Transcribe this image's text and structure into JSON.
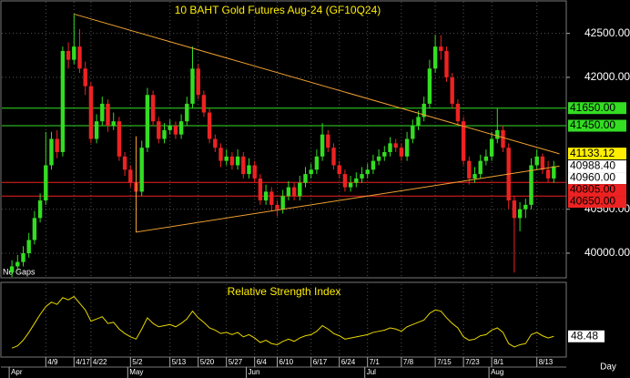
{
  "chart_data": {
    "type": "candlestick",
    "title": "10  BAHT  Gold Futures  Aug-24  (GF10Q24)",
    "note": "No Gaps",
    "x_axis_label": "Day",
    "up_color": "#33dd22",
    "down_color": "#ee2222",
    "ylim": [
      39720,
      42880
    ],
    "yticks": [
      {
        "value": 40000,
        "label": "40000.00"
      },
      {
        "value": 40500,
        "label": "40500.00"
      },
      {
        "value": 42000,
        "label": "42000.00"
      },
      {
        "value": 42500,
        "label": "42500.00"
      }
    ],
    "levels": [
      {
        "value": 41650,
        "label": "41650.00",
        "color": "#33dd22",
        "line": true
      },
      {
        "value": 41450,
        "label": "41450.00",
        "color": "#33dd22",
        "line": true
      },
      {
        "value": 41133.12,
        "label": "41133.12",
        "color": "#ffee00",
        "line": false
      },
      {
        "value": 40988.4,
        "label": "40988.40",
        "color": "#ffffff",
        "line": false
      },
      {
        "value": 40960,
        "label": "40960.00",
        "color": "#ffffff",
        "line": false
      },
      {
        "value": 40805,
        "label": "40805.00",
        "color": "#ee2222",
        "line": true
      },
      {
        "value": 40650,
        "label": "40650.00",
        "color": "#ee2222",
        "line": true
      }
    ],
    "trendline_color": "#f0a030",
    "trendlines": [
      [
        [
          11,
          42720
        ],
        [
          97,
          41130
        ]
      ],
      [
        [
          22,
          41330
        ],
        [
          22,
          40240
        ],
        [
          97,
          40990
        ]
      ]
    ],
    "date_ticks": [
      {
        "index": 6,
        "label": "4/9"
      },
      {
        "index": 11,
        "label": "4/17"
      },
      {
        "index": 14,
        "label": "4/22"
      },
      {
        "index": 21,
        "label": "5/2"
      },
      {
        "index": 28,
        "label": "5/13"
      },
      {
        "index": 33,
        "label": "5/20"
      },
      {
        "index": 38,
        "label": "5/27"
      },
      {
        "index": 43,
        "label": "6/4"
      },
      {
        "index": 47,
        "label": "6/10"
      },
      {
        "index": 53,
        "label": "6/17"
      },
      {
        "index": 58,
        "label": "6/24"
      },
      {
        "index": 63,
        "label": "7/1"
      },
      {
        "index": 69,
        "label": "7/8"
      },
      {
        "index": 75,
        "label": "7/15"
      },
      {
        "index": 80,
        "label": "7/23"
      },
      {
        "index": 85,
        "label": "8/1"
      },
      {
        "index": 93,
        "label": "8/13"
      }
    ],
    "month_ticks": [
      {
        "index": 0,
        "label": "Apr"
      },
      {
        "index": 21,
        "label": "May"
      },
      {
        "index": 42,
        "label": "Jun"
      },
      {
        "index": 63,
        "label": "Jul"
      },
      {
        "index": 85,
        "label": "Aug"
      }
    ],
    "candles": [
      [
        39780,
        39920,
        39730,
        39850
      ],
      [
        39850,
        39980,
        39800,
        39900
      ],
      [
        39900,
        40080,
        39850,
        40000
      ],
      [
        40000,
        40230,
        39950,
        40150
      ],
      [
        40150,
        40480,
        40100,
        40400
      ],
      [
        40400,
        40680,
        40350,
        40600
      ],
      [
        40600,
        41380,
        40550,
        41000
      ],
      [
        41000,
        41380,
        40950,
        41300
      ],
      [
        41300,
        41400,
        41080,
        41150
      ],
      [
        41150,
        42350,
        41100,
        42300
      ],
      [
        42300,
        42400,
        42100,
        42200
      ],
      [
        42200,
        42720,
        42150,
        42350
      ],
      [
        42350,
        42550,
        42050,
        42100
      ],
      [
        42100,
        42180,
        41800,
        41900
      ],
      [
        41900,
        41950,
        41250,
        41300
      ],
      [
        41300,
        41580,
        41250,
        41500
      ],
      [
        41500,
        41780,
        41450,
        41700
      ],
      [
        41700,
        41750,
        41380,
        41450
      ],
      [
        41450,
        41600,
        41400,
        41500
      ],
      [
        41500,
        41550,
        41050,
        41100
      ],
      [
        41100,
        41150,
        40880,
        40950
      ],
      [
        40950,
        41000,
        40750,
        40800
      ],
      [
        40800,
        40850,
        40620,
        40700
      ],
      [
        40700,
        41280,
        40650,
        41200
      ],
      [
        41200,
        41880,
        41150,
        41800
      ],
      [
        41800,
        41850,
        41450,
        41500
      ],
      [
        41500,
        41550,
        41250,
        41300
      ],
      [
        41300,
        41480,
        41250,
        41400
      ],
      [
        41400,
        41520,
        41350,
        41450
      ],
      [
        41450,
        41500,
        41300,
        41350
      ],
      [
        41350,
        41580,
        41300,
        41500
      ],
      [
        41500,
        41780,
        41450,
        41700
      ],
      [
        41700,
        42350,
        41650,
        42100
      ],
      [
        42100,
        42150,
        41750,
        41800
      ],
      [
        41800,
        41850,
        41550,
        41600
      ],
      [
        41600,
        41650,
        41250,
        41300
      ],
      [
        41300,
        41350,
        41150,
        41200
      ],
      [
        41200,
        41250,
        40980,
        41050
      ],
      [
        41050,
        41180,
        41000,
        41100
      ],
      [
        41100,
        41150,
        40950,
        41000
      ],
      [
        41000,
        41180,
        40950,
        41100
      ],
      [
        41100,
        41150,
        40850,
        40900
      ],
      [
        40900,
        41080,
        40850,
        41000
      ],
      [
        41000,
        41050,
        40800,
        40850
      ],
      [
        40850,
        40900,
        40550,
        40600
      ],
      [
        40600,
        40780,
        40550,
        40700
      ],
      [
        40700,
        40750,
        40480,
        40550
      ],
      [
        40550,
        40600,
        40420,
        40500
      ],
      [
        40500,
        40720,
        40450,
        40650
      ],
      [
        40650,
        40820,
        40600,
        40750
      ],
      [
        40750,
        40800,
        40600,
        40650
      ],
      [
        40650,
        40880,
        40600,
        40800
      ],
      [
        40800,
        40980,
        40750,
        40900
      ],
      [
        40900,
        41020,
        40850,
        40950
      ],
      [
        40950,
        41180,
        40900,
        41100
      ],
      [
        41100,
        41480,
        41050,
        41350
      ],
      [
        41350,
        41400,
        41150,
        41200
      ],
      [
        41200,
        41250,
        40950,
        41000
      ],
      [
        41000,
        41050,
        40850,
        40900
      ],
      [
        40900,
        40950,
        40700,
        40750
      ],
      [
        40750,
        40880,
        40700,
        40800
      ],
      [
        40800,
        40920,
        40750,
        40850
      ],
      [
        40850,
        40980,
        40800,
        40900
      ],
      [
        40900,
        41020,
        40850,
        40950
      ],
      [
        40950,
        41120,
        40900,
        41050
      ],
      [
        41050,
        41180,
        41000,
        41100
      ],
      [
        41100,
        41220,
        41050,
        41150
      ],
      [
        41150,
        41320,
        41100,
        41250
      ],
      [
        41250,
        41300,
        41150,
        41200
      ],
      [
        41200,
        41250,
        41050,
        41100
      ],
      [
        41100,
        41380,
        41050,
        41300
      ],
      [
        41300,
        41520,
        41250,
        41450
      ],
      [
        41450,
        41620,
        41400,
        41550
      ],
      [
        41550,
        41780,
        41500,
        41700
      ],
      [
        41700,
        42200,
        41650,
        42100
      ],
      [
        42100,
        42480,
        42050,
        42350
      ],
      [
        42350,
        42480,
        42200,
        42300
      ],
      [
        42300,
        42350,
        41950,
        42000
      ],
      [
        42000,
        42050,
        41650,
        41700
      ],
      [
        41700,
        41750,
        41450,
        41500
      ],
      [
        41500,
        41550,
        41000,
        41050
      ],
      [
        41050,
        41100,
        40780,
        40850
      ],
      [
        40850,
        40980,
        40800,
        40900
      ],
      [
        40900,
        41120,
        40850,
        41050
      ],
      [
        41050,
        41180,
        41000,
        41100
      ],
      [
        41100,
        41380,
        41050,
        41300
      ],
      [
        41300,
        41650,
        41250,
        41400
      ],
      [
        41400,
        41450,
        41150,
        41200
      ],
      [
        41200,
        41250,
        40500,
        40600
      ],
      [
        40600,
        40650,
        39780,
        40400
      ],
      [
        40400,
        40580,
        40250,
        40500
      ],
      [
        40500,
        40620,
        40400,
        40550
      ],
      [
        40550,
        41080,
        40500,
        41000
      ],
      [
        41000,
        41180,
        40950,
        41100
      ],
      [
        41100,
        41133.12,
        40900,
        40950
      ],
      [
        40950,
        41050,
        40800,
        40850
      ],
      [
        40850,
        41050,
        40800,
        40988.4
      ]
    ],
    "rsi": {
      "title": "Relative Strength Index",
      "color": "#e8d800",
      "ylim": [
        30,
        95
      ],
      "values": [
        38,
        40,
        45,
        52,
        60,
        68,
        75,
        79,
        77,
        83,
        81,
        84,
        78,
        72,
        62,
        64,
        66,
        60,
        61,
        55,
        51,
        48,
        46,
        55,
        65,
        60,
        57,
        58,
        59,
        57,
        60,
        64,
        71,
        65,
        61,
        56,
        54,
        51,
        52,
        50,
        52,
        48,
        50,
        47,
        43,
        45,
        42,
        41,
        44,
        46,
        44,
        47,
        49,
        50,
        53,
        58,
        55,
        51,
        49,
        46,
        47,
        48,
        49,
        50,
        52,
        53,
        54,
        56,
        55,
        53,
        57,
        59,
        61,
        63,
        69,
        72,
        71,
        65,
        60,
        56,
        48,
        45,
        46,
        49,
        50,
        54,
        56,
        52,
        42,
        39,
        41,
        42,
        50,
        52,
        49,
        47,
        48.48
      ]
    }
  }
}
